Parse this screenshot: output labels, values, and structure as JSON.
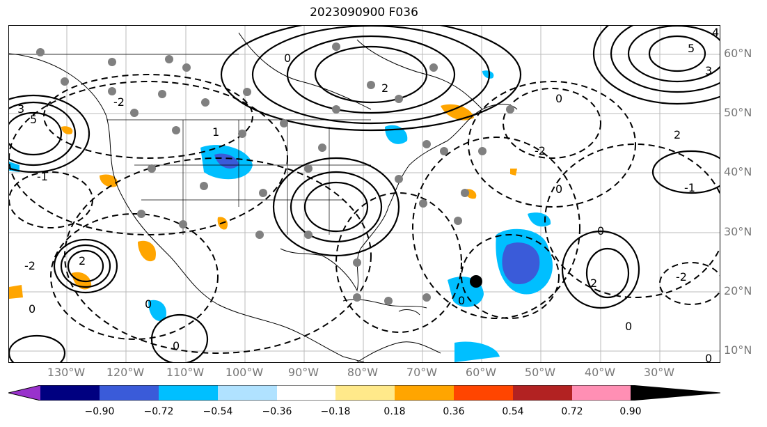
{
  "title": "2023090900 F036",
  "lon_labels": [
    "130°W",
    "120°W",
    "110°W",
    "100°W",
    "90°W",
    "80°W",
    "70°W",
    "60°W",
    "50°W",
    "40°W",
    "30°W"
  ],
  "lat_labels": [
    "60°N",
    "50°N",
    "40°N",
    "30°N",
    "20°N",
    "10°N"
  ],
  "colorbar": {
    "ticks": [
      "−0.90",
      "−0.72",
      "−0.54",
      "−0.36",
      "−0.18",
      "0.18",
      "0.36",
      "0.54",
      "0.72",
      "0.90"
    ],
    "colors": [
      "#9932cc",
      "#000080",
      "#3a5bd9",
      "#00bfff",
      "#b0e2ff",
      "#ffffff",
      "#ffe98a",
      "#ffa500",
      "#ff4500",
      "#b22222",
      "#ff8fb4"
    ]
  },
  "contour_labels": [
    "0",
    "1",
    "2",
    "3",
    "4",
    "5",
    "-1",
    "-2"
  ],
  "marker": "storm-center"
}
